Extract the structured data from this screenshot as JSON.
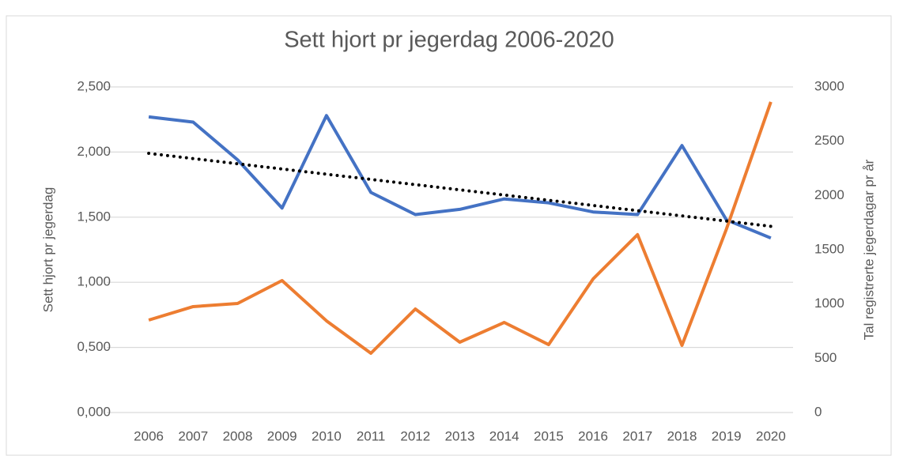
{
  "chart_data": {
    "type": "line",
    "title": "Sett hjort pr jegerdag 2006-2020",
    "ylabel": "Sett hjort pr jegerdag",
    "y2label": "Tal registrerte jegerdagar pr år",
    "categories": [
      "2006",
      "2007",
      "2008",
      "2009",
      "2010",
      "2011",
      "2012",
      "2013",
      "2014",
      "2015",
      "2016",
      "2017",
      "2018",
      "2019",
      "2020"
    ],
    "series": [
      {
        "color": "#4472c4",
        "axis": "y",
        "values": [
          2.27,
          2.23,
          1.94,
          1.57,
          2.28,
          1.69,
          1.52,
          1.56,
          1.64,
          1.61,
          1.54,
          1.52,
          2.05,
          1.48,
          1.34
        ]
      },
      {
        "color": "#ed7d31",
        "axis": "y2",
        "values": [
          852,
          976,
          1005,
          1216,
          845,
          546,
          954,
          648,
          830,
          626,
          1231,
          1639,
          619,
          1690,
          2862
        ]
      }
    ],
    "trendline": {
      "color": "#000000",
      "axis": "y",
      "values": [
        1.99,
        1.95,
        1.91,
        1.87,
        1.83,
        1.79,
        1.75,
        1.71,
        1.67,
        1.63,
        1.59,
        1.55,
        1.51,
        1.47,
        1.43
      ]
    },
    "ylim": [
      0,
      2.5
    ],
    "yticks": [
      {
        "value": 0,
        "label": "0,000"
      },
      {
        "value": 0.5,
        "label": "0,500"
      },
      {
        "value": 1,
        "label": "1,000"
      },
      {
        "value": 1.5,
        "label": "1,500"
      },
      {
        "value": 2,
        "label": "2,000"
      },
      {
        "value": 2.5,
        "label": "2,500"
      }
    ],
    "y2lim": [
      0,
      3000
    ],
    "y2ticks": [
      0,
      500,
      1000,
      1500,
      2000,
      2500,
      3000
    ],
    "grid": true
  }
}
